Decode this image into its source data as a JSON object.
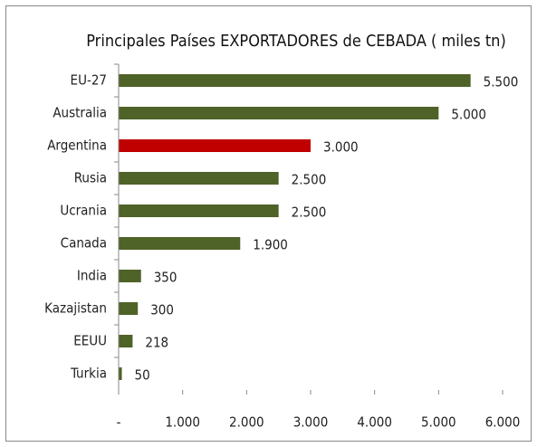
{
  "chart_data": {
    "type": "barh",
    "title": "Principales Países EXPORTADORES de CEBADA ( miles tn)",
    "categories": [
      "EU-27",
      "Australia",
      "Argentina",
      "Rusia",
      "Ucrania",
      "Canada",
      "India",
      "Kazajistan",
      "EEUU",
      "Turkia"
    ],
    "values": [
      5500,
      5000,
      3000,
      2500,
      2500,
      1900,
      350,
      300,
      218,
      50
    ],
    "value_labels": [
      "5.500",
      "5.000",
      "3.000",
      "2.500",
      "2.500",
      "1.900",
      "350",
      "300",
      "218",
      "50"
    ],
    "colors": [
      "#4f6228",
      "#4f6228",
      "#c00000",
      "#4f6228",
      "#4f6228",
      "#4f6228",
      "#4f6228",
      "#4f6228",
      "#4f6228",
      "#4f6228"
    ],
    "xlim": [
      0,
      6000
    ],
    "xticks": [
      {
        "value": 0,
        "label": "-"
      },
      {
        "value": 1000,
        "label": "1.000"
      },
      {
        "value": 2000,
        "label": "2.000"
      },
      {
        "value": 3000,
        "label": "3.000"
      },
      {
        "value": 4000,
        "label": "4.000"
      },
      {
        "value": 5000,
        "label": "5.000"
      },
      {
        "value": 6000,
        "label": "6.000"
      }
    ],
    "grid": false
  }
}
